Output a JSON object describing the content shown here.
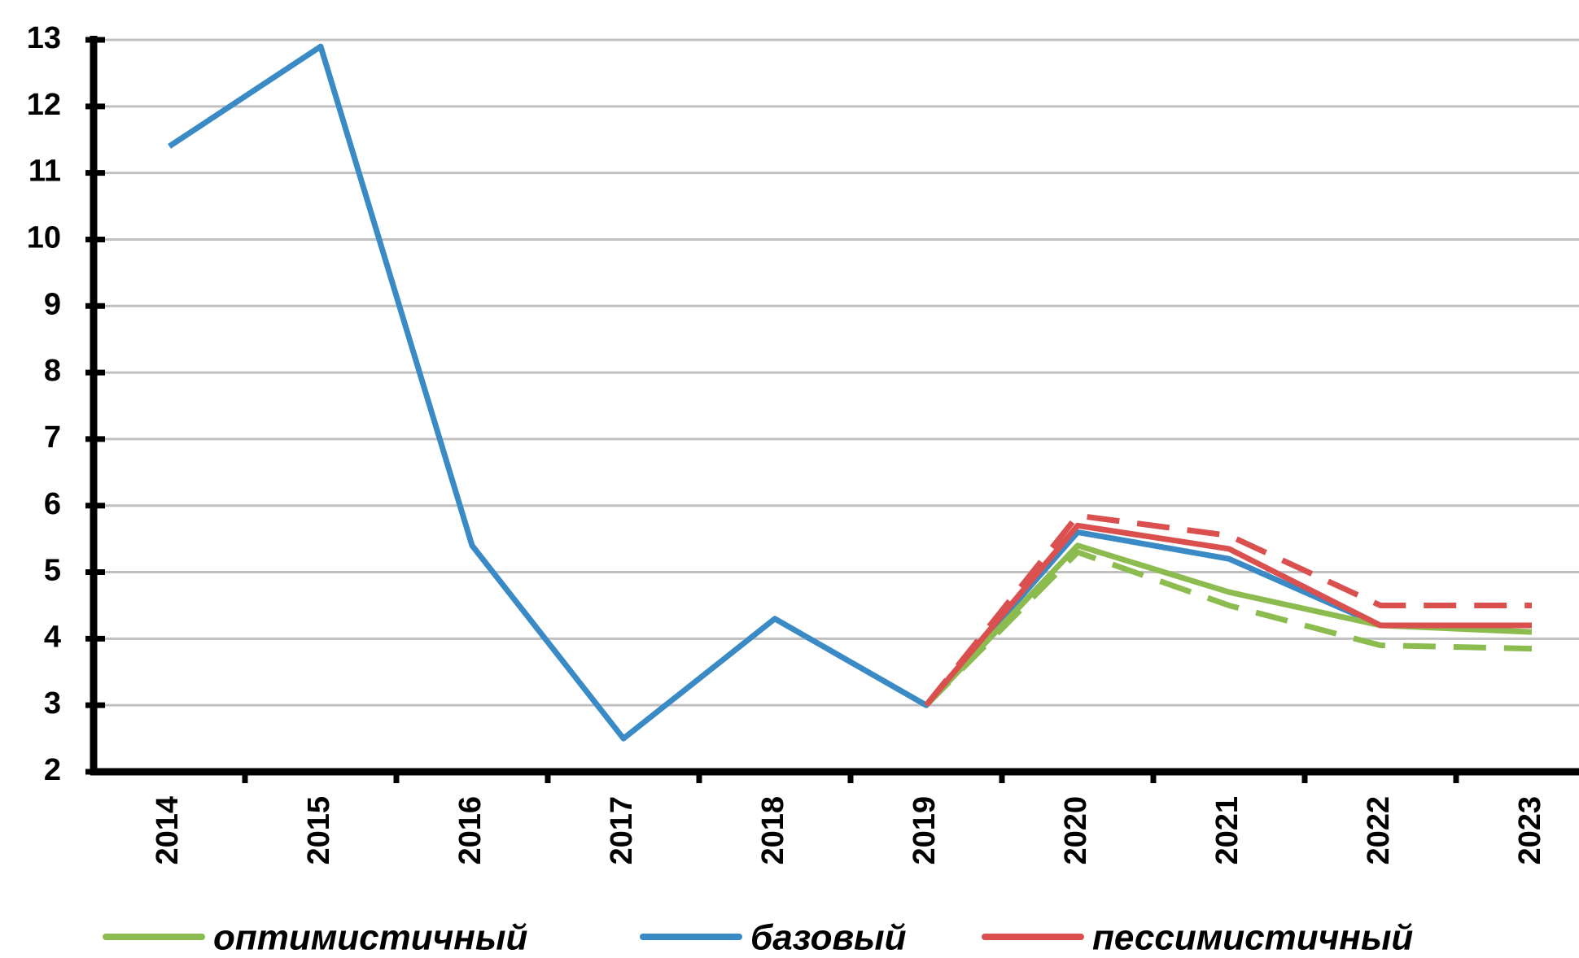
{
  "chart_data": {
    "type": "line",
    "categories": [
      "2014",
      "2015",
      "2016",
      "2017",
      "2018",
      "2019",
      "2020",
      "2021",
      "2022",
      "2023"
    ],
    "series": [
      {
        "name": "оптимистичный",
        "color": "#8cbc4f",
        "values": [
          null,
          null,
          null,
          null,
          null,
          3.0,
          5.4,
          4.7,
          4.2,
          4.1
        ]
      },
      {
        "name": "базовый",
        "color": "#3a8ac6",
        "values": [
          11.4,
          12.9,
          5.4,
          2.5,
          4.3,
          3.0,
          5.6,
          5.2,
          4.2,
          4.2
        ]
      },
      {
        "name": "пессимистичный",
        "color": "#d9504f",
        "values": [
          null,
          null,
          null,
          null,
          null,
          3.0,
          5.7,
          5.35,
          4.2,
          4.2
        ]
      },
      {
        "color": "#8cbc4f",
        "dashed": true,
        "values": [
          null,
          null,
          null,
          null,
          null,
          3.0,
          5.3,
          4.5,
          3.9,
          3.85
        ]
      },
      {
        "color": "#d9504f",
        "dashed": true,
        "values": [
          null,
          null,
          null,
          null,
          null,
          3.0,
          5.85,
          5.55,
          4.5,
          4.5
        ]
      }
    ],
    "ylim": [
      2,
      13
    ],
    "yticks": [
      2,
      3,
      4,
      5,
      6,
      7,
      8,
      9,
      10,
      11,
      12,
      13
    ],
    "grid": true
  }
}
